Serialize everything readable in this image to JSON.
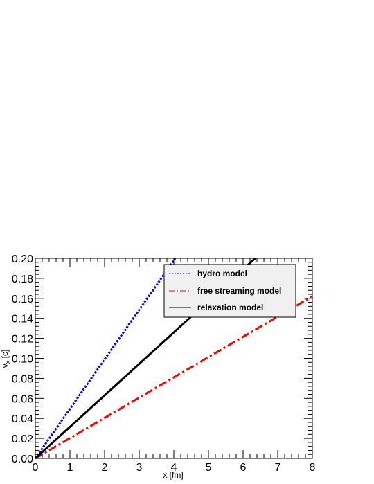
{
  "chart_data": {
    "type": "line",
    "title": "",
    "xlabel": "x [fm]",
    "ylabel": "v",
    "ylabel_sub": "x",
    "ylabel_unit": " [c]",
    "xlim": [
      0,
      8
    ],
    "ylim": [
      0,
      0.2
    ],
    "x_ticks": [
      "0",
      "1",
      "2",
      "3",
      "4",
      "5",
      "6",
      "7",
      "8"
    ],
    "y_ticks": [
      "0.00",
      "0.02",
      "0.04",
      "0.06",
      "0.08",
      "0.10",
      "0.12",
      "0.14",
      "0.16",
      "0.18",
      "0.20"
    ],
    "grid": false,
    "legend_position": "top-right",
    "series": [
      {
        "name": "hydro model",
        "x": [
          0,
          4.04
        ],
        "y": [
          0,
          0.2
        ],
        "color": "#0000ff",
        "style": "dotted"
      },
      {
        "name": "free streaming model",
        "x": [
          0,
          8
        ],
        "y": [
          0,
          0.162
        ],
        "color": "#ff0000",
        "style": "dash-dot"
      },
      {
        "name": "relaxation model",
        "x": [
          0,
          6.35
        ],
        "y": [
          0,
          0.2
        ],
        "color": "#000000",
        "style": "solid"
      }
    ]
  }
}
